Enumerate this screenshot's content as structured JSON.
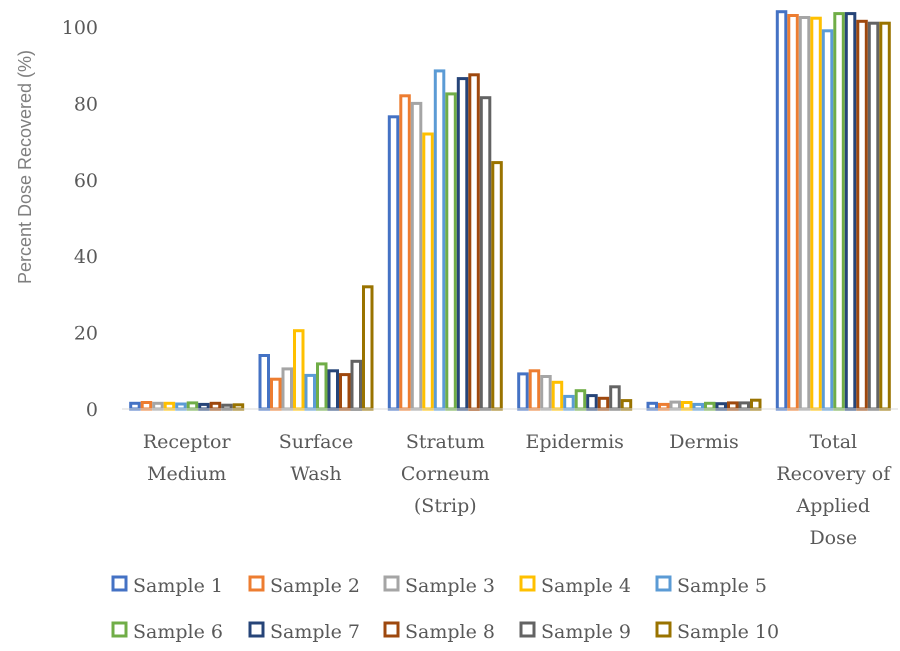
{
  "chart_data": {
    "type": "bar",
    "ylabel": "Percent Dose Recovered (%)",
    "ylim": [
      0,
      100
    ],
    "yticks": [
      "0",
      "20",
      "40",
      "60",
      "80",
      "100"
    ],
    "grid": false,
    "legend_position": "bottom",
    "categories": [
      [
        "Receptor",
        "Medium"
      ],
      [
        "Surface",
        "Wash"
      ],
      [
        "Stratum",
        "Corneum",
        "(Strip)"
      ],
      [
        "Epidermis"
      ],
      [
        "Dermis"
      ],
      [
        "Total",
        "Recovery of",
        "Applied",
        "Dose"
      ]
    ],
    "series": [
      {
        "name": "Sample 1",
        "color": "#4472C4",
        "values": [
          1.5,
          14.0,
          76.5,
          9.2,
          1.5,
          104.0
        ]
      },
      {
        "name": "Sample 2",
        "color": "#ED7D31",
        "values": [
          1.7,
          7.8,
          82.0,
          10.0,
          1.2,
          103.0
        ]
      },
      {
        "name": "Sample 3",
        "color": "#A5A5A5",
        "values": [
          1.5,
          10.5,
          80.0,
          8.5,
          1.8,
          102.5
        ]
      },
      {
        "name": "Sample 4",
        "color": "#FFC000",
        "values": [
          1.5,
          20.5,
          72.0,
          7.0,
          1.7,
          102.3
        ]
      },
      {
        "name": "Sample 5",
        "color": "#5B9BD5",
        "values": [
          1.3,
          8.8,
          88.5,
          3.3,
          1.2,
          99.0
        ]
      },
      {
        "name": "Sample 6",
        "color": "#70AD47",
        "values": [
          1.6,
          11.8,
          82.5,
          4.8,
          1.5,
          103.5
        ]
      },
      {
        "name": "Sample 7",
        "color": "#264478",
        "values": [
          1.2,
          10.0,
          86.5,
          3.5,
          1.4,
          103.5
        ]
      },
      {
        "name": "Sample 8",
        "color": "#9E480E",
        "values": [
          1.5,
          9.0,
          87.5,
          2.8,
          1.6,
          101.5
        ]
      },
      {
        "name": "Sample 9",
        "color": "#636363",
        "values": [
          1.0,
          12.5,
          81.5,
          5.8,
          1.6,
          101.0
        ]
      },
      {
        "name": "Sample 10",
        "color": "#997300",
        "values": [
          1.1,
          32.0,
          64.5,
          2.2,
          2.3,
          101.0
        ]
      }
    ]
  }
}
